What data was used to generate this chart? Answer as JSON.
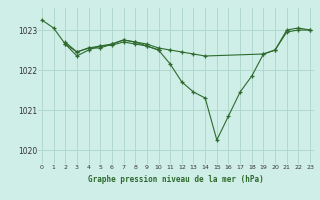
{
  "title": "Graphe pression niveau de la mer (hPa)",
  "bg_color": "#d0eee8",
  "plot_bg_color": "#d0eee8",
  "line_color": "#2d6a2d",
  "grid_color": "#b0d8cc",
  "series": [
    {
      "x": [
        0,
        1,
        2,
        3,
        4,
        5,
        6,
        7,
        8,
        9,
        10,
        11,
        12,
        13,
        14,
        15,
        16,
        17,
        18,
        19,
        20,
        21,
        22,
        23
      ],
      "y": [
        1023.25,
        1023.05,
        1022.65,
        1022.45,
        1022.55,
        1022.55,
        1022.65,
        1022.75,
        1022.7,
        1022.6,
        1022.5,
        1022.15,
        1021.7,
        1021.45,
        1021.3,
        1020.25,
        1020.85,
        1021.45,
        1021.85,
        1022.4,
        1022.5,
        1023.0,
        1023.05,
        1023.0
      ]
    },
    {
      "x": [
        2,
        3,
        4,
        5,
        6,
        7,
        8,
        9,
        10,
        11,
        12,
        13,
        14,
        19,
        20,
        21,
        22,
        23
      ],
      "y": [
        1022.7,
        1022.45,
        1022.55,
        1022.6,
        1022.65,
        1022.75,
        1022.7,
        1022.65,
        1022.55,
        1022.5,
        1022.45,
        1022.4,
        1022.35,
        1022.4,
        1022.5,
        1022.95,
        1023.0,
        1023.0
      ]
    },
    {
      "x": [
        2,
        3,
        4,
        5,
        6,
        7,
        8,
        9,
        10
      ],
      "y": [
        1022.65,
        1022.35,
        1022.5,
        1022.6,
        1022.62,
        1022.7,
        1022.65,
        1022.6,
        1022.5
      ]
    }
  ],
  "yticks": [
    1020,
    1021,
    1022,
    1023
  ],
  "xticks": [
    0,
    1,
    2,
    3,
    4,
    5,
    6,
    7,
    8,
    9,
    10,
    11,
    12,
    13,
    14,
    15,
    16,
    17,
    18,
    19,
    20,
    21,
    22,
    23
  ],
  "xlim": [
    -0.3,
    23.3
  ],
  "ylim": [
    1019.65,
    1023.55
  ]
}
